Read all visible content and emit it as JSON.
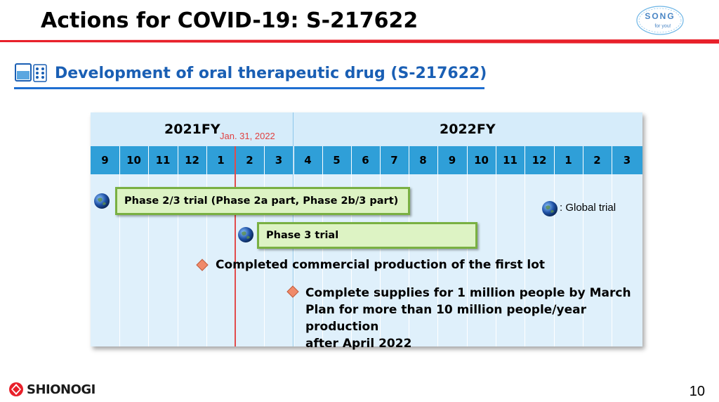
{
  "header": {
    "title": "Actions for COVID-19: S-217622"
  },
  "brand_logo": {
    "line1": "SONG",
    "line2": "for you!"
  },
  "section": {
    "title": "Development of oral therapeutic drug (S-217622)"
  },
  "gantt": {
    "fy_labels": [
      "2021FY",
      "2022FY"
    ],
    "date_marker": "Jan. 31, 2022",
    "months": [
      "9",
      "10",
      "11",
      "12",
      "1",
      "2",
      "3",
      "4",
      "5",
      "6",
      "7",
      "8",
      "9",
      "10",
      "11",
      "12",
      "1",
      "2",
      "3"
    ],
    "bars": [
      {
        "label": "Phase 2/3 trial (Phase 2a part, Phase 2b/3 part)",
        "global": true
      },
      {
        "label": "Phase 3 trial",
        "global": true
      }
    ],
    "legend": ": Global trial",
    "milestones": [
      {
        "lines": [
          "Completed commercial production of the first lot"
        ]
      },
      {
        "lines": [
          "Complete supplies for 1 million people by March",
          "Plan for more than 10 million people/year production",
          "after April 2022"
        ]
      }
    ]
  },
  "footer": {
    "company": "SHIONOGI",
    "page": "10"
  },
  "colors": {
    "accent_red": "#e8202a",
    "heading_blue": "#1a5fb4",
    "month_blue": "#2f9fd8",
    "bar_green": "#79b042"
  }
}
